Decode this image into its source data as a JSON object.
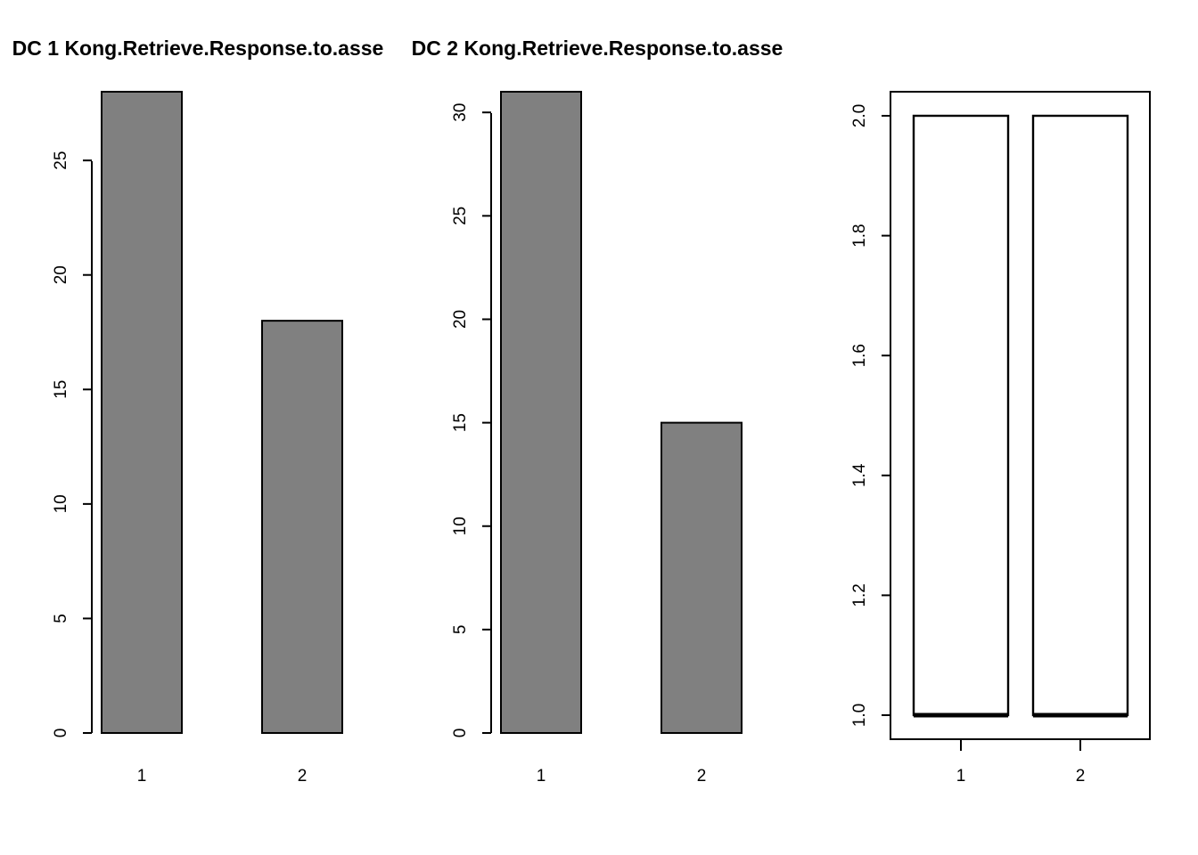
{
  "chart_data": [
    {
      "type": "bar",
      "title": "DC 1 Kong.Retrieve.Response.to.asse",
      "categories": [
        "1",
        "2"
      ],
      "values": [
        28,
        18
      ],
      "yticks": [
        0,
        5,
        10,
        15,
        20,
        25
      ],
      "ylim": [
        0,
        28
      ],
      "xlabel": "",
      "ylabel": "",
      "bar_color": "#808080",
      "grid": false,
      "legend": "none"
    },
    {
      "type": "bar",
      "title": "DC 2 Kong.Retrieve.Response.to.asse",
      "categories": [
        "1",
        "2"
      ],
      "values": [
        31,
        15
      ],
      "yticks": [
        0,
        5,
        10,
        15,
        20,
        25,
        30
      ],
      "ylim": [
        0,
        31
      ],
      "xlabel": "",
      "ylabel": "",
      "bar_color": "#808080",
      "grid": false,
      "legend": "none"
    },
    {
      "type": "boxplot",
      "title": "",
      "categories": [
        "1",
        "2"
      ],
      "boxes": [
        {
          "min": 1,
          "q1": 1,
          "median": 1,
          "q3": 2,
          "max": 2
        },
        {
          "min": 1,
          "q1": 1,
          "median": 1,
          "q3": 2,
          "max": 2
        }
      ],
      "yticks": [
        "1.0",
        "1.2",
        "1.4",
        "1.6",
        "1.8",
        "2.0"
      ],
      "ylim": [
        0.96,
        2.04
      ],
      "xlabel": "",
      "ylabel": "",
      "box_color": "#ffffff",
      "grid": false,
      "legend": "none"
    }
  ]
}
